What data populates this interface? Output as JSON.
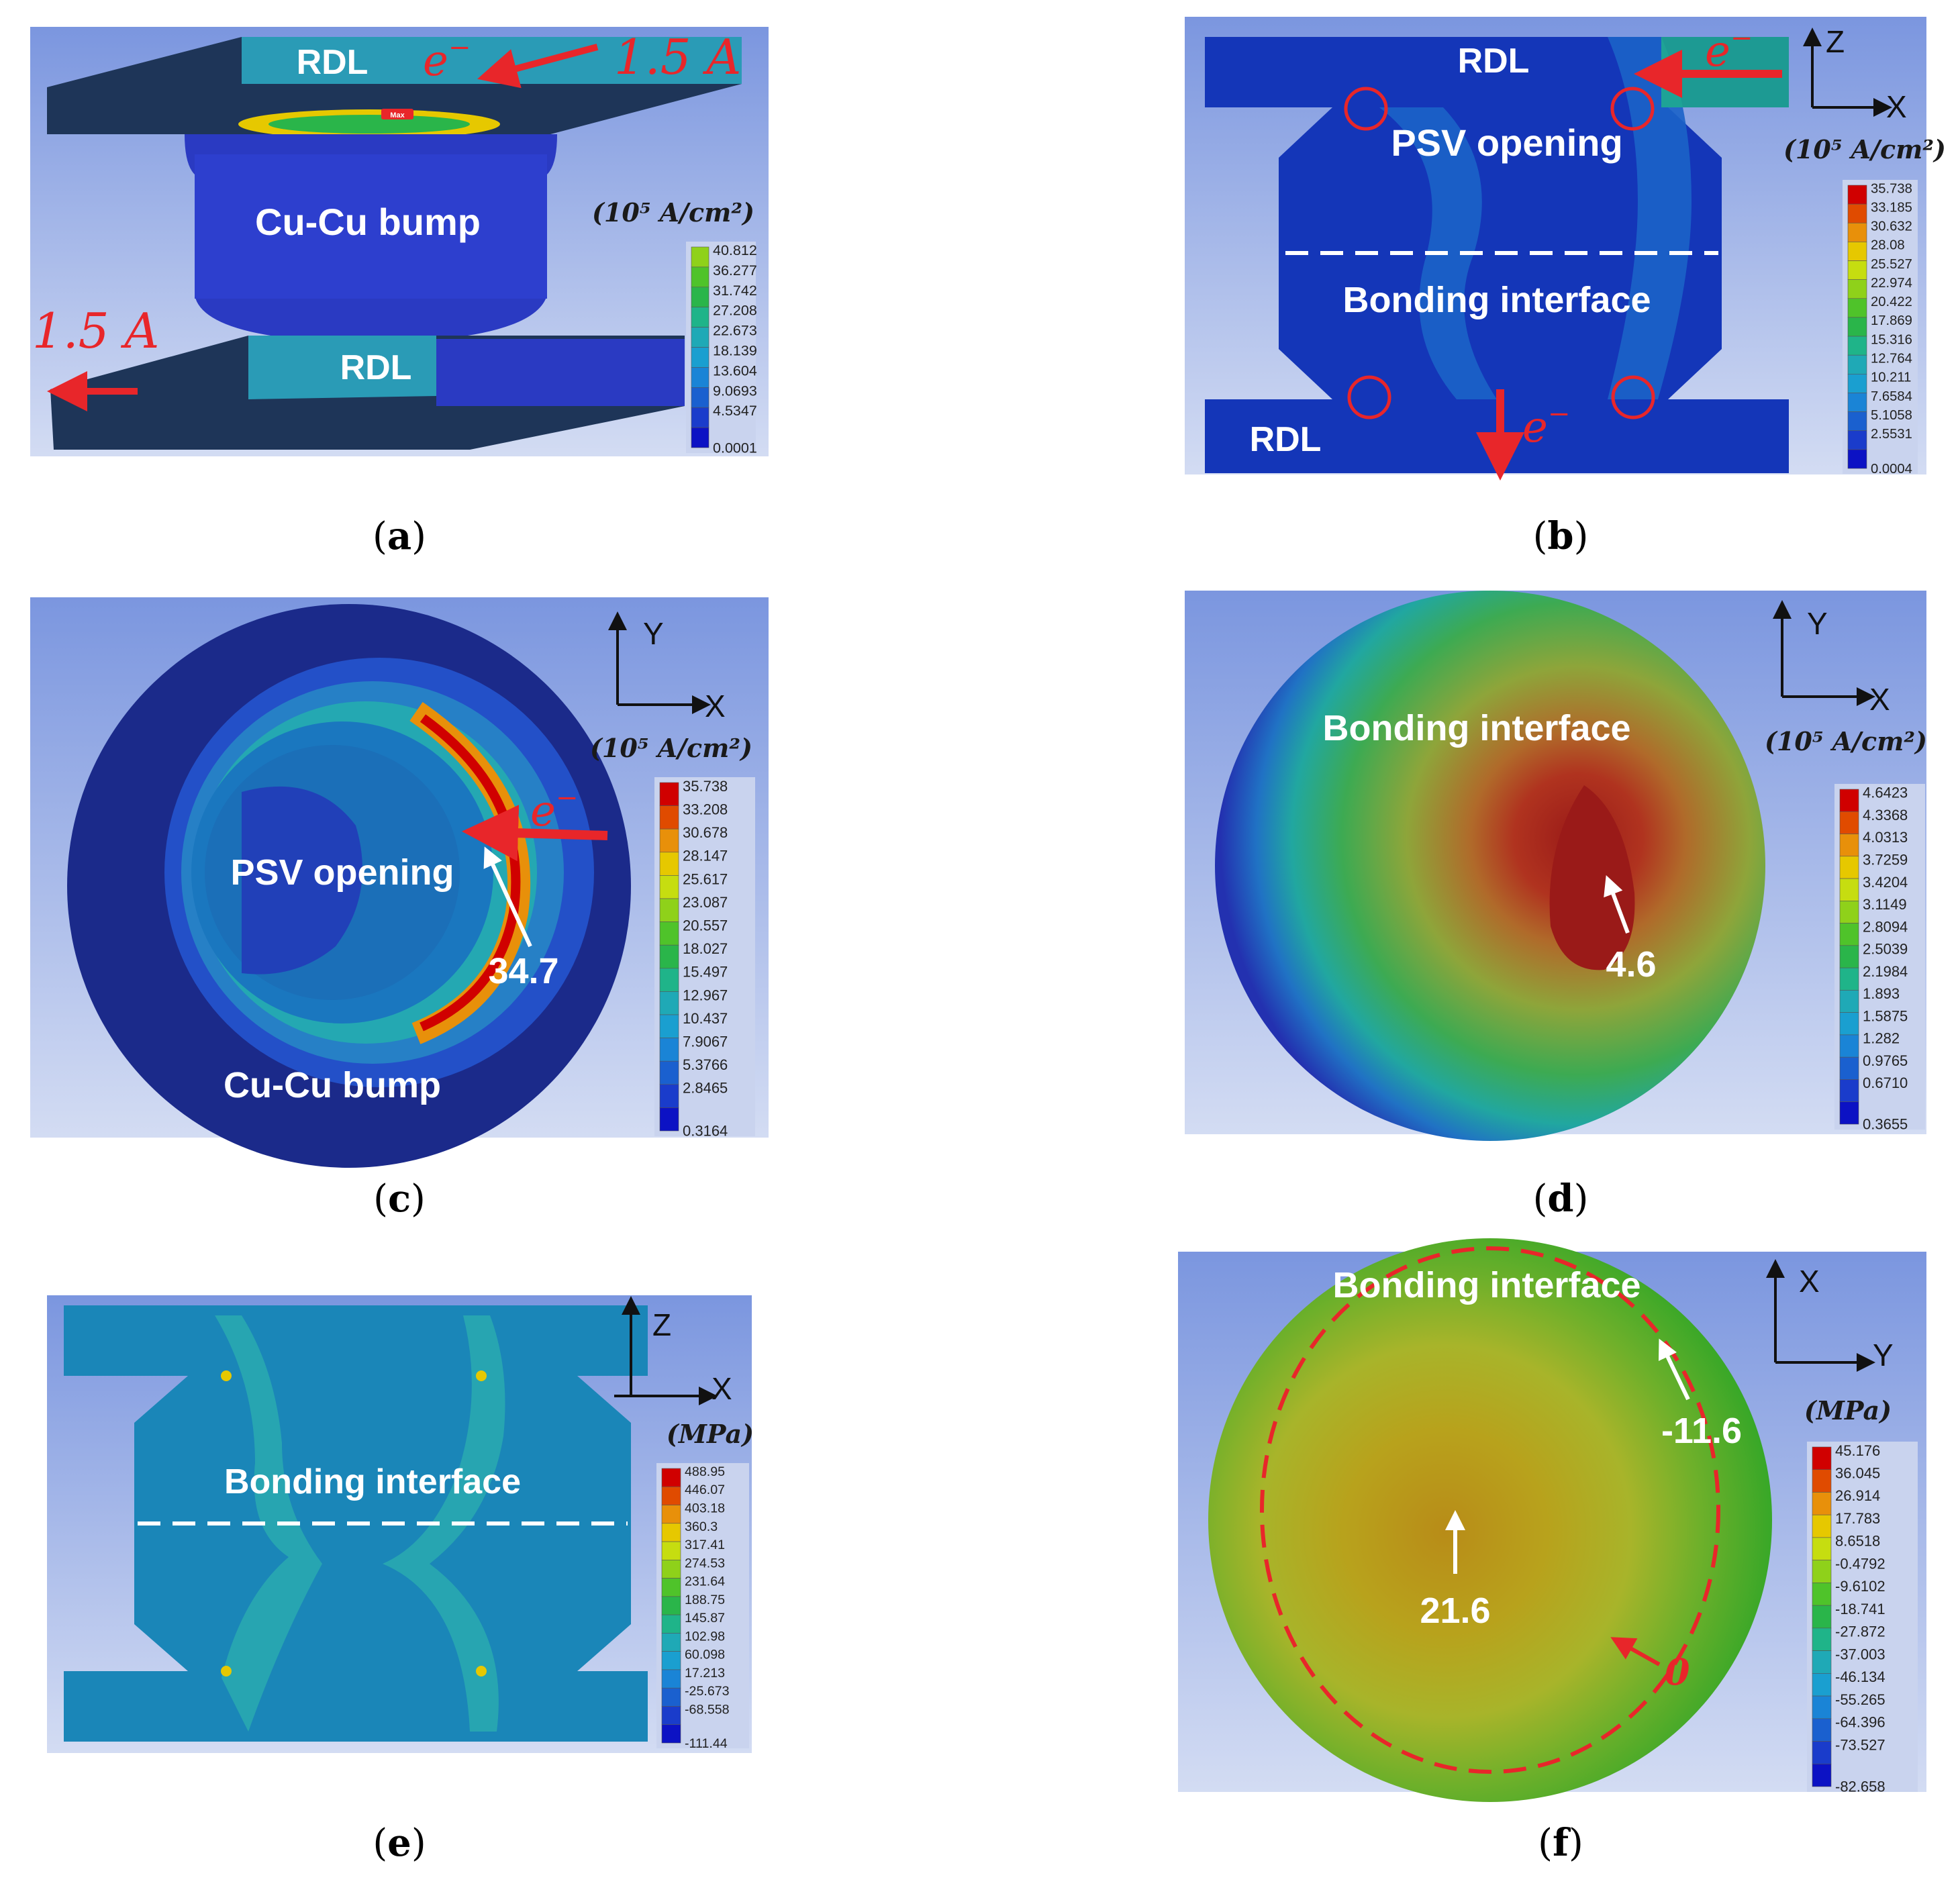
{
  "panels": {
    "a": {
      "caption": "a",
      "rdl_top": "RDL",
      "rdl_bottom": "RDL",
      "bump": "Cu-Cu bump",
      "electron": "e",
      "electron_sup": "−",
      "current_top": "1.5 A",
      "current_bottom": "1.5 A",
      "max_tag": "Max",
      "unit": "(10⁵ A/cm²)",
      "scale": [
        "40.812",
        "36.277",
        "31.742",
        "27.208",
        "22.673",
        "18.139",
        "13.604",
        "9.0693",
        "4.5347",
        "0.0001"
      ]
    },
    "b": {
      "caption": "b",
      "rdl_top": "RDL",
      "rdl_bottom": "RDL",
      "psv": "PSV opening",
      "bonding": "Bonding interface",
      "electron": "e",
      "electron_sup": "−",
      "axis_v": "Z",
      "axis_h": "X",
      "unit": "(10⁵ A/cm²)",
      "scale": [
        "35.738",
        "33.185",
        "30.632",
        "28.08",
        "25.527",
        "22.974",
        "20.422",
        "17.869",
        "15.316",
        "12.764",
        "10.211",
        "7.6584",
        "5.1058",
        "2.5531",
        "0.0004"
      ]
    },
    "c": {
      "caption": "c",
      "psv": "PSV opening",
      "bump": "Cu-Cu bump",
      "value": "34.7",
      "electron": "e",
      "electron_sup": "−",
      "axis_v": "Y",
      "axis_h": "X",
      "unit": "(10⁵ A/cm²)",
      "scale": [
        "35.738",
        "33.208",
        "30.678",
        "28.147",
        "25.617",
        "23.087",
        "20.557",
        "18.027",
        "15.497",
        "12.967",
        "10.437",
        "7.9067",
        "5.3766",
        "2.8465",
        "0.3164"
      ]
    },
    "d": {
      "caption": "d",
      "bonding": "Bonding interface",
      "value": "4.6",
      "axis_v": "Y",
      "axis_h": "X",
      "unit": "(10⁵ A/cm²)",
      "scale": [
        "4.6423",
        "4.3368",
        "4.0313",
        "3.7259",
        "3.4204",
        "3.1149",
        "2.8094",
        "2.5039",
        "2.1984",
        "1.893",
        "1.5875",
        "1.282",
        "0.9765",
        "0.6710",
        "0.3655"
      ]
    },
    "e": {
      "caption": "e",
      "bonding": "Bonding interface",
      "axis_v": "Z",
      "axis_h": "X",
      "unit": "(MPa)",
      "scale": [
        "488.95",
        "446.07",
        "403.18",
        "360.3",
        "317.41",
        "274.53",
        "231.64",
        "188.75",
        "145.87",
        "102.98",
        "60.098",
        "17.213",
        "-25.673",
        "-68.558",
        "-111.44"
      ]
    },
    "f": {
      "caption": "f",
      "bonding": "Bonding interface",
      "value_center": "21.6",
      "value_edge": "-11.6",
      "value_zero": "0",
      "axis_v": "X",
      "axis_h": "Y",
      "unit": "(MPa)",
      "scale": [
        "45.176",
        "36.045",
        "26.914",
        "17.783",
        "8.6518",
        "-0.4792",
        "-9.6102",
        "-18.741",
        "-27.872",
        "-37.003",
        "-46.134",
        "-55.265",
        "-64.396",
        "-73.527",
        "-82.658"
      ]
    }
  },
  "colors": {
    "bg_top": "#7b96df",
    "bg_bottom": "#d3dcf3",
    "red": "#e8262a",
    "scale": [
      "#d00000",
      "#e04b00",
      "#e8900a",
      "#e6c800",
      "#c6dd10",
      "#8fd11a",
      "#4fc32a",
      "#2ab54a",
      "#1fb489",
      "#1fa9b6",
      "#1a9fd0",
      "#1a84d6",
      "#1a60cf",
      "#1a3ccb",
      "#0c12c4"
    ]
  }
}
